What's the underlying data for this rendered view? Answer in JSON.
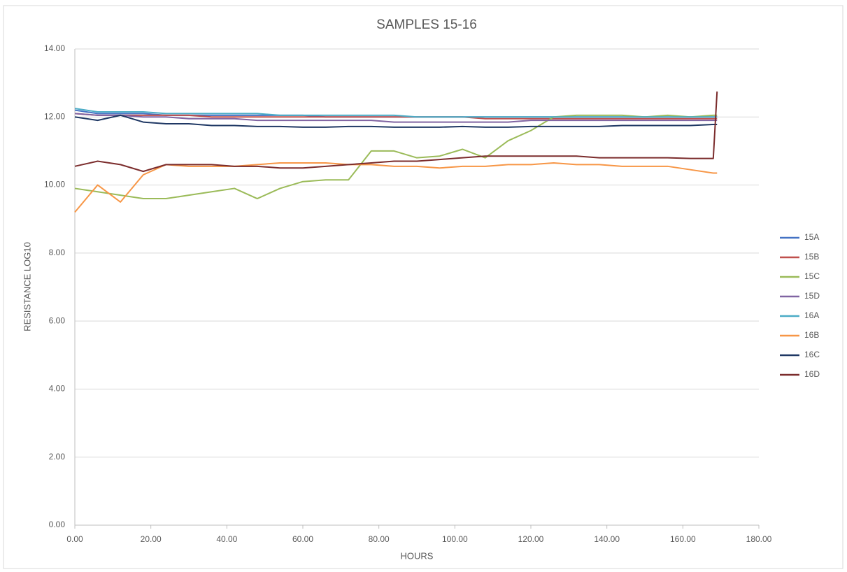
{
  "chart_data": {
    "type": "line",
    "title": "SAMPLES 15-16",
    "x_label": "HOURS",
    "y_label": "RESISTANCE LOG10",
    "x": [
      0,
      6,
      12,
      18,
      24,
      30,
      36,
      42,
      48,
      54,
      60,
      66,
      72,
      78,
      84,
      90,
      96,
      102,
      108,
      114,
      120,
      126,
      132,
      138,
      144,
      150,
      156,
      162,
      168,
      169
    ],
    "xlim": [
      0,
      180
    ],
    "xticks": [
      {
        "value": 0,
        "label": "0.00"
      },
      {
        "value": 20,
        "label": "20.00"
      },
      {
        "value": 40,
        "label": "40.00"
      },
      {
        "value": 60,
        "label": "60.00"
      },
      {
        "value": 80,
        "label": "80.00"
      },
      {
        "value": 100,
        "label": "100.00"
      },
      {
        "value": 120,
        "label": "120.00"
      },
      {
        "value": 140,
        "label": "140.00"
      },
      {
        "value": 160,
        "label": "160.00"
      },
      {
        "value": 180,
        "label": "180.00"
      }
    ],
    "ylim": [
      0,
      14
    ],
    "yticks": [
      {
        "value": 0,
        "label": "0.00"
      },
      {
        "value": 2,
        "label": "2.00"
      },
      {
        "value": 4,
        "label": "4.00"
      },
      {
        "value": 6,
        "label": "6.00"
      },
      {
        "value": 8,
        "label": "8.00"
      },
      {
        "value": 10,
        "label": "10.00"
      },
      {
        "value": 12,
        "label": "12.00"
      },
      {
        "value": 14,
        "label": "14.00"
      }
    ],
    "grid": true,
    "legend": "right",
    "series": [
      {
        "name": "15A",
        "color": "#4472c4",
        "values": [
          12.2,
          12.1,
          12.1,
          12.1,
          12.05,
          12.05,
          12.05,
          12.05,
          12.05,
          12.05,
          12.05,
          12.0,
          12.0,
          12.0,
          12.0,
          12.0,
          12.0,
          12.0,
          12.0,
          12.0,
          12.0,
          12.0,
          12.0,
          12.0,
          12.0,
          12.0,
          12.0,
          12.0,
          12.0,
          12.0
        ]
      },
      {
        "name": "15B",
        "color": "#c0504d",
        "values": [
          12.1,
          12.05,
          12.05,
          12.05,
          12.05,
          12.05,
          12.0,
          12.0,
          12.0,
          12.0,
          12.0,
          12.0,
          12.0,
          12.0,
          12.0,
          12.0,
          12.0,
          12.0,
          11.95,
          11.95,
          11.95,
          11.95,
          11.95,
          11.95,
          11.95,
          11.95,
          11.95,
          11.95,
          11.95,
          11.95
        ]
      },
      {
        "name": "15C",
        "color": "#9bbb59",
        "values": [
          9.9,
          9.8,
          9.7,
          9.6,
          9.6,
          9.7,
          9.8,
          9.9,
          9.6,
          9.9,
          10.1,
          10.15,
          10.15,
          11.0,
          11.0,
          10.8,
          10.85,
          11.05,
          10.8,
          11.3,
          11.6,
          12.0,
          12.05,
          12.05,
          12.05,
          12.0,
          12.05,
          12.0,
          12.05,
          12.05
        ]
      },
      {
        "name": "15D",
        "color": "#8064a2",
        "values": [
          12.1,
          12.05,
          12.05,
          12.0,
          12.0,
          11.95,
          11.95,
          11.95,
          11.9,
          11.9,
          11.9,
          11.9,
          11.9,
          11.9,
          11.85,
          11.85,
          11.85,
          11.85,
          11.85,
          11.85,
          11.9,
          11.9,
          11.9,
          11.9,
          11.9,
          11.9,
          11.9,
          11.9,
          11.9,
          11.9
        ]
      },
      {
        "name": "16A",
        "color": "#4bacc6",
        "values": [
          12.25,
          12.15,
          12.15,
          12.15,
          12.1,
          12.1,
          12.1,
          12.1,
          12.1,
          12.05,
          12.05,
          12.05,
          12.05,
          12.05,
          12.05,
          12.0,
          12.0,
          12.0,
          12.0,
          12.0,
          12.0,
          12.0,
          12.0,
          12.0,
          12.0,
          12.0,
          12.0,
          12.0,
          12.0,
          12.0
        ]
      },
      {
        "name": "16B",
        "color": "#f79646",
        "values": [
          9.2,
          10.0,
          9.5,
          10.3,
          10.6,
          10.55,
          10.55,
          10.55,
          10.6,
          10.65,
          10.65,
          10.65,
          10.6,
          10.6,
          10.55,
          10.55,
          10.5,
          10.55,
          10.55,
          10.6,
          10.6,
          10.65,
          10.6,
          10.6,
          10.55,
          10.55,
          10.55,
          10.45,
          10.35,
          10.35
        ]
      },
      {
        "name": "16C",
        "color": "#1f3864",
        "values": [
          12.0,
          11.9,
          12.05,
          11.85,
          11.8,
          11.8,
          11.75,
          11.75,
          11.72,
          11.72,
          11.7,
          11.7,
          11.72,
          11.72,
          11.7,
          11.7,
          11.7,
          11.72,
          11.7,
          11.7,
          11.72,
          11.72,
          11.72,
          11.72,
          11.75,
          11.75,
          11.75,
          11.75,
          11.78,
          11.78
        ]
      },
      {
        "name": "16D",
        "color": "#7b2c2c",
        "values": [
          10.55,
          10.7,
          10.6,
          10.4,
          10.6,
          10.6,
          10.6,
          10.55,
          10.55,
          10.5,
          10.5,
          10.55,
          10.6,
          10.65,
          10.7,
          10.7,
          10.75,
          10.8,
          10.85,
          10.85,
          10.85,
          10.85,
          10.85,
          10.8,
          10.8,
          10.8,
          10.8,
          10.78,
          10.78,
          12.75
        ]
      }
    ]
  }
}
